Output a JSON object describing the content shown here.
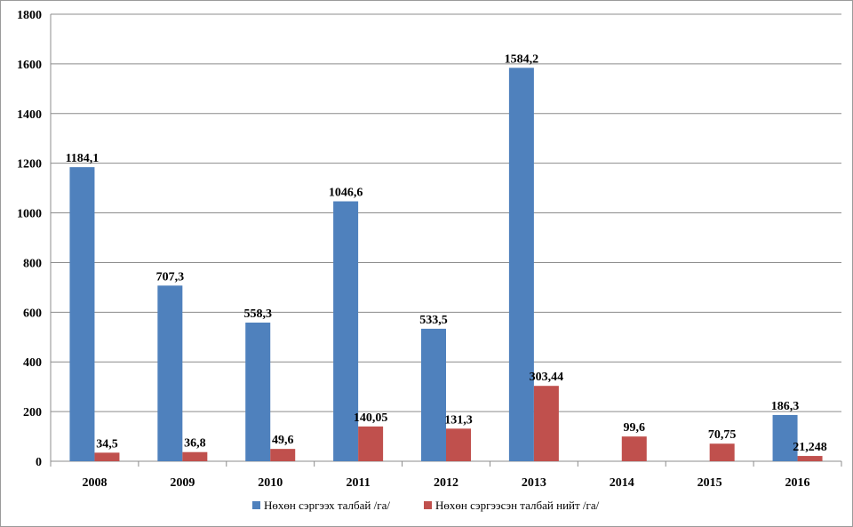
{
  "chart_data": {
    "type": "bar",
    "title": "",
    "xlabel": "",
    "ylabel": "",
    "categories": [
      "2008",
      "2009",
      "2010",
      "2011",
      "2012",
      "2013",
      "2014",
      "2015",
      "2016"
    ],
    "ylim": [
      0,
      1800
    ],
    "yticks": [
      0,
      200,
      400,
      600,
      800,
      1000,
      1200,
      1400,
      1600,
      1800
    ],
    "grid": true,
    "legend_position": "bottom",
    "series": [
      {
        "name": "Нөхөн сэргээх талбай  /га/",
        "color": "#4F81BD",
        "values": [
          1184.1,
          707.3,
          558.3,
          1046.6,
          533.5,
          1584.2,
          null,
          null,
          186.3
        ],
        "labels": [
          "1184,1",
          "707,3",
          "558,3",
          "1046,6",
          "533,5",
          "1584,2",
          "",
          "",
          "186,3"
        ]
      },
      {
        "name": "Нөхөн сэргээсэн талбай  нийт  /га/",
        "color": "#C0504D",
        "values": [
          34.5,
          36.8,
          49.6,
          140.05,
          131.3,
          303.44,
          99.6,
          70.75,
          21.248
        ],
        "labels": [
          "34,5",
          "36,8",
          "49,6",
          "140,05",
          "131,3",
          "303,44",
          "99,6",
          "70,75",
          "21,248"
        ]
      }
    ]
  }
}
